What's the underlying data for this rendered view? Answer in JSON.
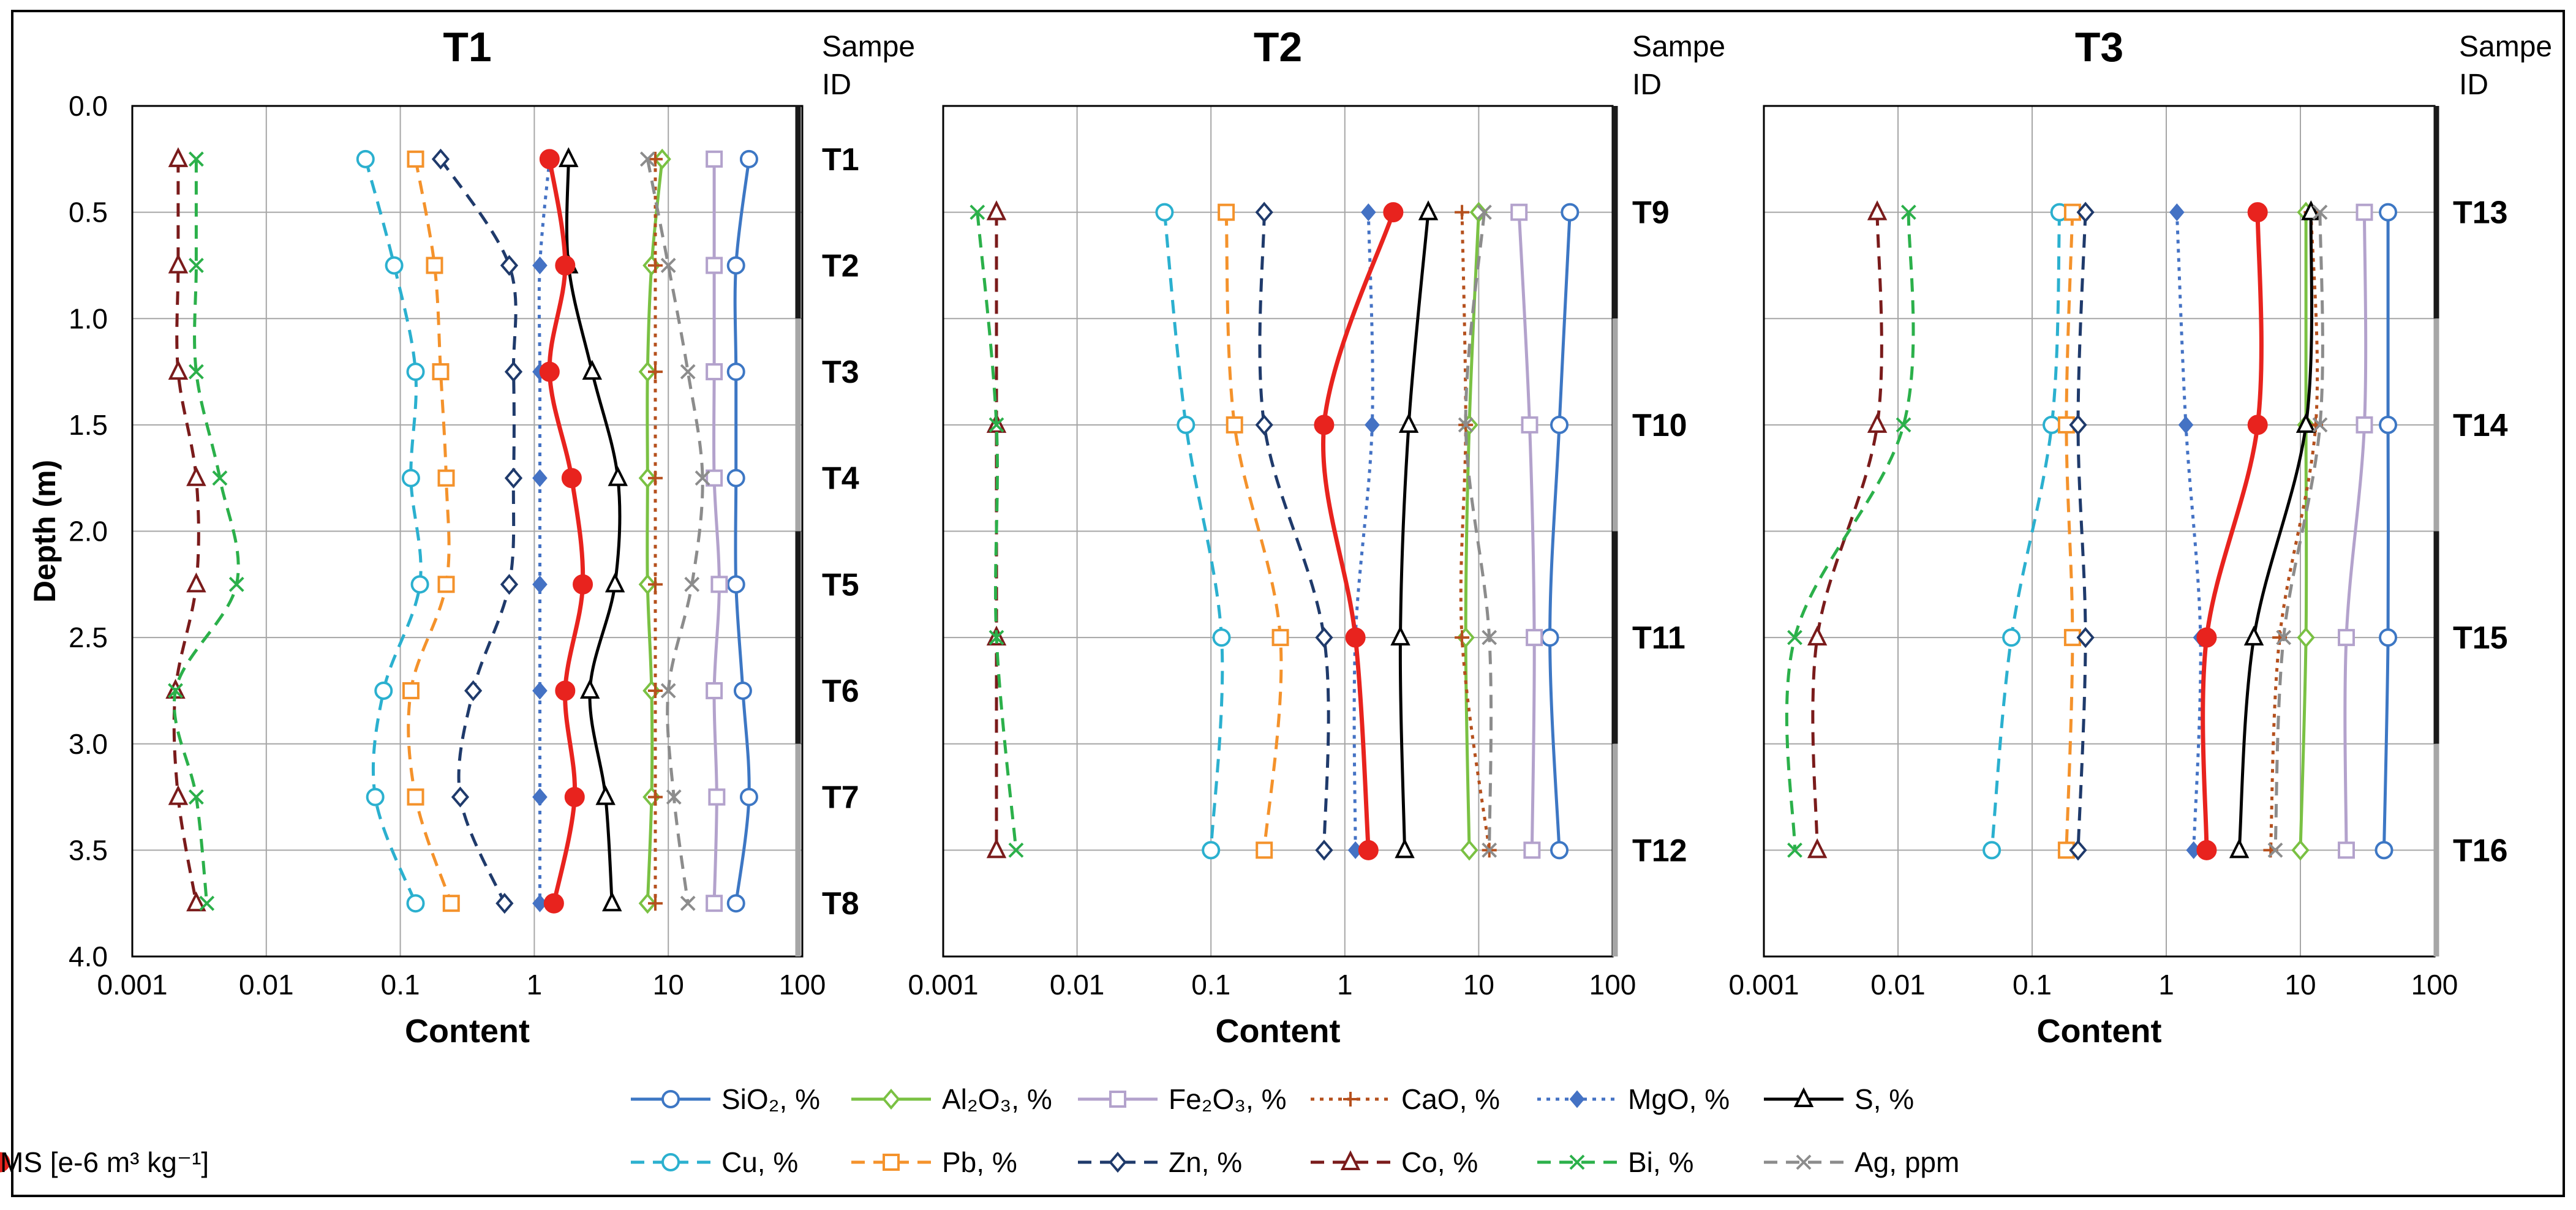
{
  "chart_data": {
    "type": "line",
    "x_scale": "log",
    "xlim": [
      0.001,
      100
    ],
    "x_ticks": [
      "0.001",
      "0.01",
      "0.1",
      "1",
      "10",
      "100"
    ],
    "ylim": [
      0,
      4
    ],
    "y_reversed": true,
    "y_ticks": [
      "0.0",
      "0.5",
      "1.0",
      "1.5",
      "2.0",
      "2.5",
      "3.0",
      "3.5",
      "4.0"
    ],
    "xlabel": "Content",
    "ylabel": "Depth (m)",
    "sample_id_label": "Sampe ID",
    "grid": true,
    "legend_position": "bottom",
    "legend": [
      {
        "key": "sio2",
        "label": "SiO₂, %"
      },
      {
        "key": "al2o3",
        "label": "Al₂O₃, %"
      },
      {
        "key": "fe2o3",
        "label": "Fe₂O₃, %"
      },
      {
        "key": "cao",
        "label": "CaO, %"
      },
      {
        "key": "mgo",
        "label": "MgO, %"
      },
      {
        "key": "s",
        "label": "S, %"
      },
      {
        "key": "cu",
        "label": "Cu, %"
      },
      {
        "key": "pb",
        "label": "Pb, %"
      },
      {
        "key": "zn",
        "label": "Zn, %"
      },
      {
        "key": "co",
        "label": "Co, %"
      },
      {
        "key": "bi",
        "label": "Bi, %"
      },
      {
        "key": "ag",
        "label": "Ag, ppm"
      },
      {
        "key": "ms",
        "label": "MS [e-6 m³ kg⁻¹]"
      }
    ],
    "style": {
      "sio2": {
        "color": "#3d77c4",
        "dash": "solid",
        "marker": "circle-open"
      },
      "al2o3": {
        "color": "#7ac143",
        "dash": "solid",
        "marker": "diamond-open"
      },
      "fe2o3": {
        "color": "#b3a2cc",
        "dash": "solid",
        "marker": "square-open"
      },
      "cao": {
        "color": "#b5501d",
        "dash": "dot",
        "marker": "plus"
      },
      "mgo": {
        "color": "#4472c4",
        "dash": "dot",
        "marker": "diamond-filled"
      },
      "s": {
        "color": "#000000",
        "dash": "solid",
        "marker": "triangle-open"
      },
      "cu": {
        "color": "#2bb0cf",
        "dash": "dash",
        "marker": "circle-open"
      },
      "pb": {
        "color": "#f4922b",
        "dash": "dash",
        "marker": "square-open"
      },
      "zn": {
        "color": "#1f3a6b",
        "dash": "dash",
        "marker": "diamond-open"
      },
      "co": {
        "color": "#7a1b1b",
        "dash": "dash",
        "marker": "triangle-open"
      },
      "bi": {
        "color": "#2bb04a",
        "dash": "dash",
        "marker": "x"
      },
      "ag": {
        "color": "#8c8c8c",
        "dash": "dash",
        "marker": "x"
      },
      "ms": {
        "color": "#e8231e",
        "dash": "solid",
        "marker": "circle-filled"
      }
    },
    "panels": [
      {
        "title": "T1",
        "depths": [
          0.25,
          0.75,
          1.25,
          1.75,
          2.25,
          2.75,
          3.25,
          3.75
        ],
        "samples": [
          {
            "id": "T1",
            "depth": 0.25
          },
          {
            "id": "T2",
            "depth": 0.75
          },
          {
            "id": "T3",
            "depth": 1.25
          },
          {
            "id": "T4",
            "depth": 1.75
          },
          {
            "id": "T5",
            "depth": 2.25
          },
          {
            "id": "T6",
            "depth": 2.75
          },
          {
            "id": "T7",
            "depth": 3.25
          },
          {
            "id": "T8",
            "depth": 3.75
          }
        ],
        "series": {
          "sio2": [
            40,
            32,
            32,
            32,
            32,
            36,
            40,
            32
          ],
          "al2o3": [
            9,
            7.5,
            7,
            7,
            7,
            7.5,
            7.5,
            7
          ],
          "fe2o3": [
            22,
            22,
            22,
            22,
            24,
            22,
            23,
            22
          ],
          "cao": [
            8,
            8,
            8,
            8,
            8,
            8,
            8,
            8
          ],
          "mgo": [
            1.3,
            1.1,
            1.1,
            1.1,
            1.1,
            1.1,
            1.1,
            1.1
          ],
          "s": [
            1.8,
            1.8,
            2.7,
            4.2,
            4,
            2.6,
            3.4,
            3.8
          ],
          "cu": [
            0.055,
            0.09,
            0.13,
            0.12,
            0.14,
            0.075,
            0.065,
            0.13
          ],
          "pb": [
            0.13,
            0.18,
            0.2,
            0.22,
            0.22,
            0.12,
            0.13,
            0.24
          ],
          "zn": [
            0.2,
            0.65,
            0.7,
            0.7,
            0.65,
            0.35,
            0.28,
            0.6
          ],
          "co": [
            0.0022,
            0.0022,
            0.0022,
            0.003,
            0.003,
            0.0021,
            0.0022,
            0.003
          ],
          "bi": [
            0.003,
            0.003,
            0.003,
            0.0045,
            0.006,
            0.0021,
            0.003,
            0.0036
          ],
          "ag": [
            7,
            10,
            14,
            18,
            15,
            10,
            11,
            14
          ],
          "ms": [
            1.3,
            1.7,
            1.3,
            1.9,
            2.3,
            1.7,
            2,
            1.4
          ]
        }
      },
      {
        "title": "T2",
        "depths": [
          0.5,
          1.5,
          2.5,
          3.5
        ],
        "samples": [
          {
            "id": "T9",
            "depth": 0.5
          },
          {
            "id": "T10",
            "depth": 1.5
          },
          {
            "id": "T11",
            "depth": 2.5
          },
          {
            "id": "T12",
            "depth": 3.5
          }
        ],
        "series": {
          "sio2": [
            48,
            40,
            34,
            40
          ],
          "al2o3": [
            10,
            8.5,
            8,
            8.5
          ],
          "fe2o3": [
            20,
            24,
            26,
            25
          ],
          "cao": [
            7.5,
            8,
            7.5,
            12
          ],
          "mgo": [
            1.5,
            1.6,
            1.2,
            1.2
          ],
          "s": [
            4.2,
            3,
            2.6,
            2.8
          ],
          "cu": [
            0.045,
            0.065,
            0.12,
            0.1
          ],
          "pb": [
            0.13,
            0.15,
            0.33,
            0.25
          ],
          "zn": [
            0.25,
            0.25,
            0.7,
            0.7
          ],
          "co": [
            0.0025,
            0.0025,
            0.0025,
            0.0025
          ],
          "bi": [
            0.0018,
            0.0025,
            0.0025,
            0.0035
          ],
          "ag": [
            11,
            8,
            12,
            12
          ],
          "ms": [
            2.3,
            0.7,
            1.2,
            1.5
          ]
        }
      },
      {
        "title": "T3",
        "depths": [
          0.5,
          1.5,
          2.5,
          3.5
        ],
        "samples": [
          {
            "id": "T13",
            "depth": 0.5
          },
          {
            "id": "T14",
            "depth": 1.5
          },
          {
            "id": "T15",
            "depth": 2.5
          },
          {
            "id": "T16",
            "depth": 3.5
          }
        ],
        "series": {
          "sio2": [
            45,
            45,
            45,
            42
          ],
          "al2o3": [
            11,
            11,
            11,
            10
          ],
          "fe2o3": [
            30,
            30,
            22,
            22
          ],
          "cao": [
            12,
            13,
            7,
            6
          ],
          "mgo": [
            1.2,
            1.4,
            1.8,
            1.6
          ],
          "s": [
            12,
            11,
            4.5,
            3.5
          ],
          "cu": [
            0.16,
            0.14,
            0.07,
            0.05
          ],
          "pb": [
            0.2,
            0.18,
            0.2,
            0.18
          ],
          "zn": [
            0.25,
            0.22,
            0.25,
            0.22
          ],
          "co": [
            0.007,
            0.007,
            0.0025,
            0.0025
          ],
          "bi": [
            0.012,
            0.011,
            0.0017,
            0.0017
          ],
          "ag": [
            14,
            14,
            7.5,
            6.5
          ],
          "ms": [
            4.8,
            4.8,
            2,
            2
          ]
        }
      }
    ]
  }
}
